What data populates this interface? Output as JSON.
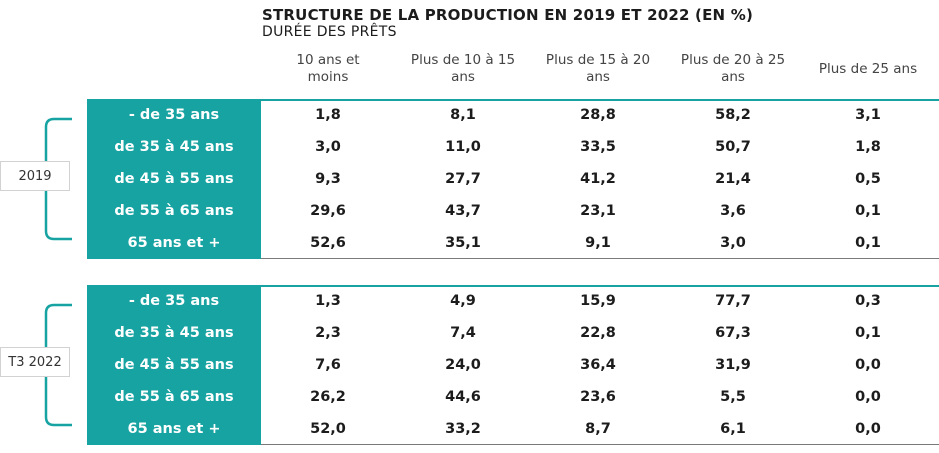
{
  "chart_data": {
    "type": "table",
    "title": "STRUCTURE DE LA PRODUCTION EN 2019 ET 2022 (EN %)",
    "subtitle": "DURÉE DES PRÊTS",
    "columns": [
      [
        "10 ans et",
        "moins"
      ],
      [
        "Plus de 10 à 15",
        "ans"
      ],
      [
        "Plus de 15 à 20",
        "ans"
      ],
      [
        "Plus de 20 à 25",
        "ans"
      ],
      [
        "Plus de 25 ans"
      ]
    ],
    "rows": [
      "- de 35 ans",
      "de 35 à 45 ans",
      "de 45 à 55 ans",
      "de 55 à 65 ans",
      "65 ans et +"
    ],
    "groups": [
      {
        "label": "2019",
        "values": [
          [
            "1,8",
            "8,1",
            "28,8",
            "58,2",
            "3,1"
          ],
          [
            "3,0",
            "11,0",
            "33,5",
            "50,7",
            "1,8"
          ],
          [
            "9,3",
            "27,7",
            "41,2",
            "21,4",
            "0,5"
          ],
          [
            "29,6",
            "43,7",
            "23,1",
            "3,6",
            "0,1"
          ],
          [
            "52,6",
            "35,1",
            "9,1",
            "3,0",
            "0,1"
          ]
        ]
      },
      {
        "label": "T3 2022",
        "values": [
          [
            "1,3",
            "4,9",
            "15,9",
            "77,7",
            "0,3"
          ],
          [
            "2,3",
            "7,4",
            "22,8",
            "67,3",
            "0,1"
          ],
          [
            "7,6",
            "24,0",
            "36,4",
            "31,9",
            "0,0"
          ],
          [
            "26,2",
            "44,6",
            "23,6",
            "5,5",
            "0,0"
          ],
          [
            "52,0",
            "33,2",
            "8,7",
            "6,1",
            "0,0"
          ]
        ]
      }
    ]
  },
  "colors": {
    "accent": "#17a3a2",
    "text": "#1c1c1c",
    "rule": "#7a7a7a"
  }
}
